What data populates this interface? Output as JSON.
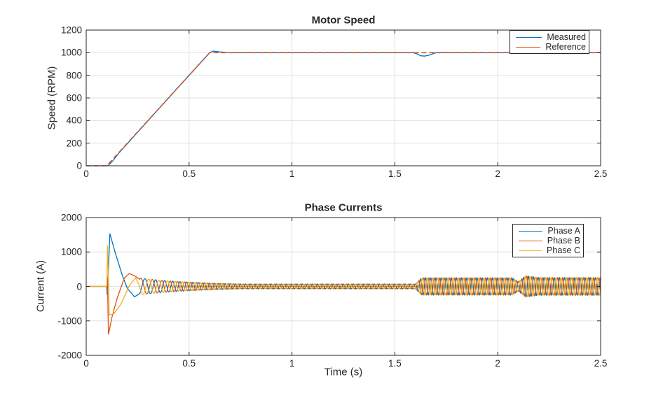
{
  "figure": {
    "background": "#ffffff",
    "text_color": "#262626",
    "axis_color": "#262626",
    "grid_color": "#e0e0e0"
  },
  "chart_data": [
    {
      "type": "line",
      "title": "Motor Speed",
      "xlabel": "",
      "ylabel": "Speed (RPM)",
      "xlim": [
        0,
        2.5
      ],
      "ylim": [
        0,
        1200
      ],
      "x_ticks": [
        0,
        0.5,
        1,
        1.5,
        2,
        2.5
      ],
      "x_tick_labels": [
        "0",
        "0.5",
        "1",
        "1.5",
        "2",
        "2.5"
      ],
      "y_ticks": [
        0,
        200,
        400,
        600,
        800,
        1000,
        1200
      ],
      "y_tick_labels": [
        "0",
        "200",
        "400",
        "600",
        "800",
        "1000",
        "1200"
      ],
      "grid": true,
      "legend": {
        "position": "top-right",
        "entries": [
          {
            "label": "Measured",
            "color": "#0072BD",
            "line_style": "solid"
          },
          {
            "label": "Reference",
            "color": "#D95319",
            "line_style": "dashed"
          }
        ]
      },
      "series": [
        {
          "name": "Measured",
          "color": "#0072BD",
          "line_style": "solid",
          "render": "piecewise",
          "points": [
            [
              0,
              0
            ],
            [
              0.1,
              0
            ],
            [
              0.107,
              2
            ],
            [
              0.13,
              45
            ],
            [
              0.16,
              115
            ],
            [
              0.2,
              196
            ],
            [
              0.3,
              398
            ],
            [
              0.4,
              599
            ],
            [
              0.5,
              800
            ],
            [
              0.57,
              940
            ],
            [
              0.6,
              1000
            ],
            [
              0.617,
              1014
            ],
            [
              0.645,
              1008
            ],
            [
              0.68,
              1002
            ],
            [
              0.72,
              1000
            ],
            [
              1.59,
              1000
            ],
            [
              1.61,
              988
            ],
            [
              1.625,
              973
            ],
            [
              1.645,
              970
            ],
            [
              1.665,
              977
            ],
            [
              1.685,
              991
            ],
            [
              1.705,
              1001
            ],
            [
              1.735,
              1003
            ],
            [
              1.77,
              1000
            ],
            [
              2.5,
              1000
            ]
          ]
        },
        {
          "name": "Reference",
          "color": "#D95319",
          "line_style": "dashed",
          "render": "piecewise",
          "points": [
            [
              0,
              0
            ],
            [
              0.1,
              0
            ],
            [
              0.6,
              1000
            ],
            [
              2.5,
              1000
            ]
          ]
        }
      ]
    },
    {
      "type": "line",
      "title": "Phase Currents",
      "xlabel": "Time (s)",
      "ylabel": "Current (A)",
      "xlim": [
        0,
        2.5
      ],
      "ylim": [
        -2000,
        2000
      ],
      "x_ticks": [
        0,
        0.5,
        1,
        1.5,
        2,
        2.5
      ],
      "x_tick_labels": [
        "0",
        "0.5",
        "1",
        "1.5",
        "2",
        "2.5"
      ],
      "y_ticks": [
        -2000,
        -1000,
        0,
        1000,
        2000
      ],
      "y_tick_labels": [
        "-2000",
        "-1000",
        "0",
        "1000",
        "2000"
      ],
      "grid": true,
      "legend": {
        "position": "top-right",
        "entries": [
          {
            "label": "Phase A",
            "color": "#0072BD",
            "line_style": "solid"
          },
          {
            "label": "Phase B",
            "color": "#D95319",
            "line_style": "solid"
          },
          {
            "label": "Phase C",
            "color": "#EDB120",
            "line_style": "solid"
          }
        ]
      },
      "generator": {
        "t_join": 0.26,
        "t_end": 2.5,
        "dt": 0.0007,
        "f0": 4,
        "f1": 40,
        "ramp": [
          0.1,
          0.6
        ],
        "envelope": [
          [
            0.26,
            240
          ],
          [
            0.35,
            185
          ],
          [
            0.45,
            140
          ],
          [
            0.55,
            110
          ],
          [
            0.62,
            90
          ],
          [
            0.75,
            70
          ],
          [
            1.6,
            70
          ],
          [
            1.615,
            160
          ],
          [
            1.63,
            250
          ],
          [
            2.07,
            250
          ],
          [
            2.1,
            140
          ],
          [
            2.135,
            310
          ],
          [
            2.2,
            255
          ],
          [
            2.5,
            255
          ]
        ]
      },
      "series": [
        {
          "name": "Phase A",
          "color": "#0072BD",
          "render": "three_phase_sine",
          "phase_deg": -60,
          "transient": [
            [
              0.1,
              0
            ],
            [
              0.102,
              -250
            ],
            [
              0.106,
              150
            ],
            [
              0.115,
              1535
            ],
            [
              0.14,
              1000
            ],
            [
              0.175,
              330
            ],
            [
              0.2,
              -60
            ],
            [
              0.235,
              -300
            ],
            [
              0.26,
              -208
            ]
          ]
        },
        {
          "name": "Phase B",
          "color": "#D95319",
          "render": "three_phase_sine",
          "phase_deg": 60,
          "transient": [
            [
              0.1,
              0
            ],
            [
              0.103,
              280
            ],
            [
              0.108,
              -1395
            ],
            [
              0.125,
              -900
            ],
            [
              0.15,
              -350
            ],
            [
              0.185,
              240
            ],
            [
              0.21,
              375
            ],
            [
              0.24,
              290
            ],
            [
              0.26,
              208
            ]
          ]
        },
        {
          "name": "Phase C",
          "color": "#EDB120",
          "render": "three_phase_sine",
          "phase_deg": 180,
          "transient": [
            [
              0.1,
              0
            ],
            [
              0.104,
              1190
            ],
            [
              0.112,
              -830
            ],
            [
              0.135,
              -790
            ],
            [
              0.17,
              -500
            ],
            [
              0.21,
              30
            ],
            [
              0.24,
              250
            ],
            [
              0.26,
              0
            ]
          ]
        }
      ]
    }
  ]
}
